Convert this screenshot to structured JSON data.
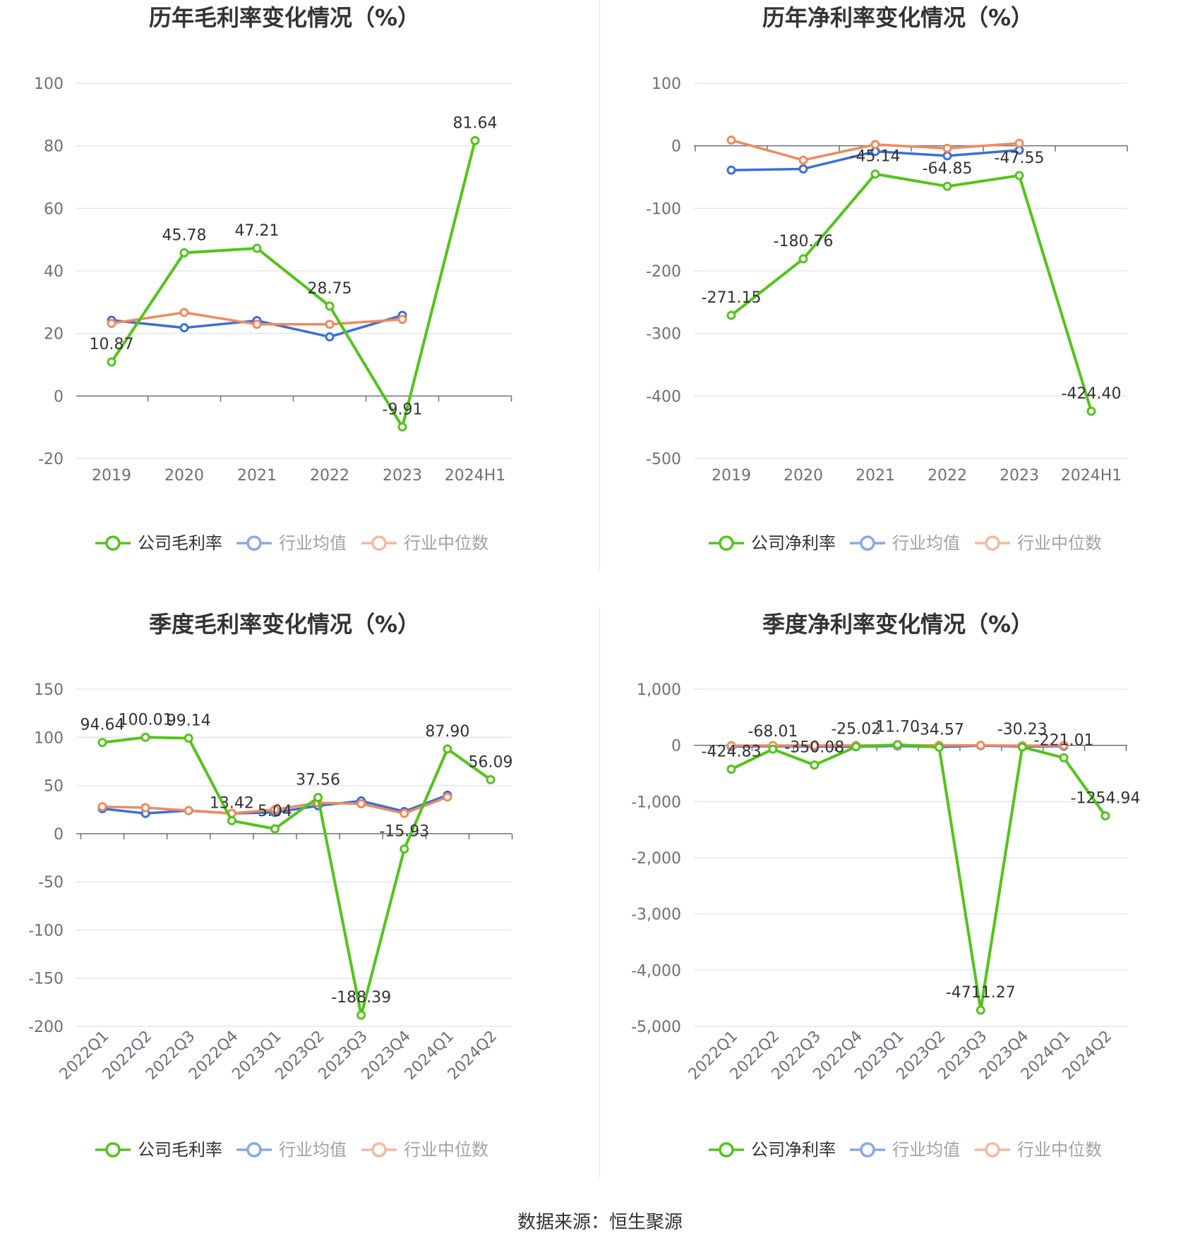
{
  "colors": {
    "company": "#52c41a",
    "industry_avg": "#3a6fd8",
    "industry_median": "#f08a5d",
    "grid": "#e0e6f1",
    "axis_text": "#6e7079",
    "title": "#333333"
  },
  "source": "数据来源：恒生聚源",
  "chart_data": [
    {
      "type": "line",
      "title": "历年毛利率变化情况（%）",
      "categories": [
        "2019",
        "2020",
        "2021",
        "2022",
        "2023",
        "2024H1"
      ],
      "ylim": [
        -20,
        100
      ],
      "yticks": [
        -20,
        0,
        20,
        40,
        60,
        80,
        100
      ],
      "ytick_labels": [
        "-20",
        "0",
        "20",
        "40",
        "60",
        "80",
        "100"
      ],
      "rotate_x": false,
      "grid": true,
      "legend_position": "bottom",
      "series": [
        {
          "name": "公司毛利率",
          "role": "company",
          "values": [
            10.87,
            45.78,
            47.21,
            28.75,
            -9.91,
            81.64
          ],
          "labels": [
            "10.87",
            "45.78",
            "47.21",
            "28.75",
            "-9.91",
            "81.64"
          ]
        },
        {
          "name": "行业均值",
          "role": "industry_avg",
          "values": [
            24.2,
            21.8,
            24.1,
            18.9,
            25.8,
            null
          ]
        },
        {
          "name": "行业中位数",
          "role": "industry_median",
          "values": [
            23.2,
            26.7,
            22.9,
            22.9,
            24.5,
            null
          ]
        }
      ]
    },
    {
      "type": "line",
      "title": "历年净利率变化情况（%）",
      "categories": [
        "2019",
        "2020",
        "2021",
        "2022",
        "2023",
        "2024H1"
      ],
      "ylim": [
        -500,
        100
      ],
      "yticks": [
        -500,
        -400,
        -300,
        -200,
        -100,
        0,
        100
      ],
      "ytick_labels": [
        "-500",
        "-400",
        "-300",
        "-200",
        "-100",
        "0",
        "100"
      ],
      "rotate_x": false,
      "grid": true,
      "legend_position": "bottom",
      "series": [
        {
          "name": "公司净利率",
          "role": "company",
          "values": [
            -271.15,
            -180.76,
            -45.14,
            -64.85,
            -47.55,
            -424.4
          ],
          "labels": [
            "-271.15",
            "-180.76",
            "-45.14",
            "-64.85",
            "-47.55",
            "-424.40"
          ]
        },
        {
          "name": "行业均值",
          "role": "industry_avg",
          "values": [
            -39,
            -37,
            -9,
            -16,
            -7,
            null
          ]
        },
        {
          "name": "行业中位数",
          "role": "industry_median",
          "values": [
            9,
            -23,
            2,
            -4,
            4,
            null
          ]
        }
      ]
    },
    {
      "type": "line",
      "title": "季度毛利率变化情况（%）",
      "categories": [
        "2022Q1",
        "2022Q2",
        "2022Q3",
        "2022Q4",
        "2023Q1",
        "2023Q2",
        "2023Q3",
        "2023Q4",
        "2024Q1",
        "2024Q2"
      ],
      "ylim": [
        -200,
        150
      ],
      "yticks": [
        -200,
        -150,
        -100,
        -50,
        0,
        50,
        100,
        150
      ],
      "ytick_labels": [
        "-200",
        "-150",
        "-100",
        "-50",
        "0",
        "50",
        "100",
        "150"
      ],
      "rotate_x": true,
      "grid": true,
      "legend_position": "bottom",
      "series": [
        {
          "name": "公司毛利率",
          "role": "company",
          "values": [
            94.64,
            100.01,
            99.14,
            13.42,
            5.04,
            37.56,
            -188.39,
            -15.93,
            87.9,
            56.09
          ],
          "labels": [
            "94.64",
            "100.01",
            "99.14",
            "13.42",
            "5.04",
            "37.56",
            "-188.39",
            "-15.93",
            "87.90",
            "56.09"
          ]
        },
        {
          "name": "行业均值",
          "role": "industry_avg",
          "values": [
            26,
            21,
            24,
            21,
            22,
            29,
            34,
            23,
            40,
            null
          ]
        },
        {
          "name": "行业中位数",
          "role": "industry_median",
          "values": [
            28,
            27,
            24,
            21,
            25,
            32,
            31,
            21,
            38,
            null
          ]
        }
      ]
    },
    {
      "type": "line",
      "title": "季度净利率变化情况（%）",
      "categories": [
        "2022Q1",
        "2022Q2",
        "2022Q3",
        "2022Q4",
        "2023Q1",
        "2023Q2",
        "2023Q3",
        "2023Q4",
        "2024Q1",
        "2024Q2"
      ],
      "ylim": [
        -5000,
        1000
      ],
      "yticks": [
        -5000,
        -4000,
        -3000,
        -2000,
        -1000,
        0,
        1000
      ],
      "ytick_labels": [
        "-5,000",
        "-4,000",
        "-3,000",
        "-2,000",
        "-1,000",
        "0",
        "1,000"
      ],
      "rotate_x": true,
      "grid": true,
      "legend_position": "bottom",
      "series": [
        {
          "name": "公司净利率",
          "role": "company",
          "values": [
            -424.83,
            -68.01,
            -350.08,
            -25.02,
            11.7,
            -34.57,
            -4711.27,
            -30.23,
            -221.01,
            -1254.94
          ],
          "labels": [
            "-424.83",
            "-68.01",
            "-350.08",
            "-25.02",
            "11.70",
            "-34.57",
            "-4711.27",
            "-30.23",
            "-221.01",
            "-1254.94"
          ]
        },
        {
          "name": "行业均值",
          "role": "industry_avg",
          "values": [
            -20,
            -15,
            -20,
            -25,
            -10,
            -30,
            -5,
            -20,
            -15,
            null
          ]
        },
        {
          "name": "行业中位数",
          "role": "industry_median",
          "values": [
            -5,
            -2,
            -3,
            -2,
            0,
            0,
            0,
            -5,
            -2,
            null
          ]
        }
      ]
    }
  ]
}
